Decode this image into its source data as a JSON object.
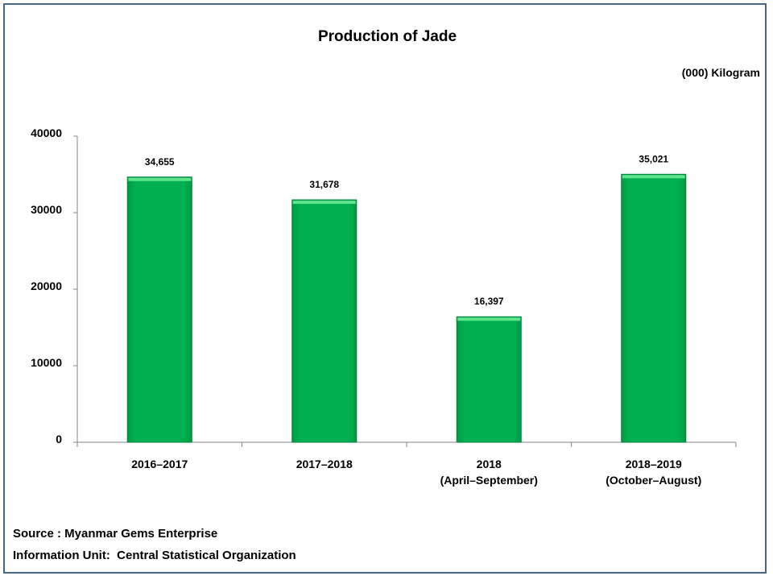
{
  "chart_data": {
    "type": "bar",
    "title": "Production of Jade",
    "unit_label": "(000) Kilogram",
    "categories": [
      [
        "2016–2017"
      ],
      [
        "2017–2018"
      ],
      [
        "2018",
        "(April–September)"
      ],
      [
        "2018–2019",
        "(October–August)"
      ]
    ],
    "values": [
      34655,
      31678,
      16397,
      35021
    ],
    "data_labels": [
      "34,655",
      "31,678",
      "16,397",
      "35,021"
    ],
    "yticks": [
      "0",
      "10000",
      "20000",
      "30000",
      "40000"
    ],
    "ylim": [
      0,
      40000
    ],
    "bar_color": "#00b050",
    "grid": false,
    "legend": false
  },
  "footer": {
    "source": "Source : Myanmar Gems Enterprise",
    "info": "Information Unit:  Central Statistical Organization"
  },
  "colors": {
    "frame_border": "#4a6583",
    "bar_fill": "#00b050",
    "bar_highlight": "#5fe38c",
    "bar_shadow": "#00803a"
  }
}
